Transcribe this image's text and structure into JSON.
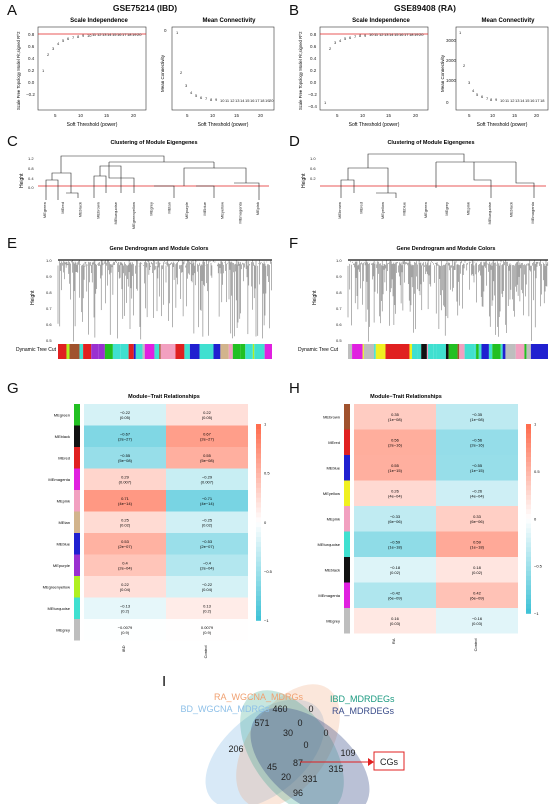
{
  "panel_letters": {
    "A": "A",
    "B": "B",
    "C": "C",
    "D": "D",
    "E": "E",
    "F": "F",
    "G": "G",
    "H": "H",
    "I": "I"
  },
  "panelA": {
    "header": "GSE75214 (IBD)",
    "left_title": "Scale Independence",
    "right_title": "Mean Connectivity",
    "ylabel_left": "Scale Free Topology Model Fit,signed R^2",
    "ylabel_right": "Mean Connectivity",
    "xlabel": "Soft Threshold (power)"
  },
  "panelB": {
    "header": "GSE89408 (RA)",
    "left_title": "Scale Independence",
    "right_title": "Mean Connectivity",
    "ylabel_left": "Scale Free Topology Model Fit,signed R^2",
    "ylabel_right": "Mean Connectivity",
    "xlabel": "Soft Threshold (power)"
  },
  "panelC": {
    "title": "Clustering of Module Eigengenes",
    "ylabel": "Height",
    "leaves": [
      "MEgreen",
      "MEred",
      "MEblack",
      "MEbrown",
      "MEturquoise",
      "MEgreenyellow",
      "MEgrey",
      "MEtan",
      "MEpurple",
      "MEblue",
      "MEyellow",
      "MEmagenta",
      "MEpink"
    ]
  },
  "panelD": {
    "title": "Clustering of Module Eigengenes",
    "ylabel": "Height",
    "leaves": [
      "MEbrown",
      "MEred",
      "MEyellow",
      "MEblue",
      "MEgreen",
      "MEgrey",
      "MEpink",
      "MEturquoise",
      "MEblack",
      "MEmagenta"
    ]
  },
  "panelE": {
    "title": "Gene Dendrogram and Module Colors",
    "ylabel": "Height",
    "track_label": "Dynamic Tree Cut"
  },
  "panelF": {
    "title": "Gene Dendrogram and Module Colors",
    "ylabel": "Height",
    "track_label": "Dynamic Tree Cut"
  },
  "panelG": {
    "title": "Module−Trait Relationships",
    "columns": [
      "IBD",
      "Control"
    ],
    "rows": [
      {
        "name": "MEgreen",
        "color": "#22c022",
        "ibd": "−0.22\n(0.05)",
        "ctl": "0.22\n(0.05)",
        "v": -0.22
      },
      {
        "name": "MEblack",
        "color": "#111111",
        "ibd": "−0.67\n(2e−27)",
        "ctl": "0.67\n(2e−27)",
        "v": -0.67
      },
      {
        "name": "MEred",
        "color": "#e02020",
        "ibd": "−0.55\n(5e−08)",
        "ctl": "0.55\n(5e−08)",
        "v": -0.55
      },
      {
        "name": "MEmagenta",
        "color": "#e020e0",
        "ibd": "0.29\n(0.007)",
        "ctl": "−0.29\n(0.007)",
        "v": 0.29
      },
      {
        "name": "MEpink",
        "color": "#f2a0c0",
        "ibd": "0.71\n(4e−14)",
        "ctl": "−0.71\n(4e−14)",
        "v": 0.71
      },
      {
        "name": "MEtan",
        "color": "#d2b48c",
        "ibd": "0.25\n(0.02)",
        "ctl": "−0.25\n(0.02)",
        "v": 0.25
      },
      {
        "name": "MEblue",
        "color": "#2020d0",
        "ibd": "0.53\n(2e−07)",
        "ctl": "−0.53\n(2e−07)",
        "v": 0.53
      },
      {
        "name": "MEpurple",
        "color": "#9a30d0",
        "ibd": "0.4\n(2e−04)",
        "ctl": "−0.4\n(2e−04)",
        "v": 0.4
      },
      {
        "name": "MEgreenyellow",
        "color": "#b0f020",
        "ibd": "0.22\n(0.04)",
        "ctl": "−0.22\n(0.04)",
        "v": 0.22
      },
      {
        "name": "MEturquoise",
        "color": "#40e0d0",
        "ibd": "−0.13\n(0.2)",
        "ctl": "0.13\n(0.2)",
        "v": -0.13
      },
      {
        "name": "MEgrey",
        "color": "#bebebe",
        "ibd": "−0.0079\n(0.9)",
        "ctl": "0.0079\n(0.9)",
        "v": -0.0079
      }
    ],
    "scale_labels": [
      "1",
      "0.5",
      "0",
      "−0.5",
      "−1"
    ]
  },
  "panelH": {
    "title": "Module−Trait Relationships",
    "columns": [
      "RA",
      "Control"
    ],
    "rows": [
      {
        "name": "MEbrown",
        "color": "#a0522d",
        "ra": "0.35\n(1e−08)",
        "ctl": "−0.35\n(1e−08)",
        "v": 0.35
      },
      {
        "name": "MEred",
        "color": "#e02020",
        "ra": "0.56\n(2e−16)",
        "ctl": "−0.56\n(2e−16)",
        "v": 0.56
      },
      {
        "name": "MEblue",
        "color": "#2020d0",
        "ra": "0.55\n(1e−15)",
        "ctl": "−0.55\n(1e−15)",
        "v": 0.55
      },
      {
        "name": "MEyellow",
        "color": "#f0f020",
        "ra": "0.26\n(4e−04)",
        "ctl": "−0.26\n(4e−04)",
        "v": 0.26
      },
      {
        "name": "MEpink",
        "color": "#f2a0c0",
        "ra": "−0.33\n(6e−06)",
        "ctl": "0.33\n(6e−06)",
        "v": -0.33
      },
      {
        "name": "MEturquoise",
        "color": "#40e0d0",
        "ra": "−0.59\n(1e−18)",
        "ctl": "0.59\n(1e−18)",
        "v": -0.59
      },
      {
        "name": "MEblack",
        "color": "#111111",
        "ra": "−0.18\n(0.02)",
        "ctl": "0.18\n(0.02)",
        "v": -0.18
      },
      {
        "name": "MEmagenta",
        "color": "#e020e0",
        "ra": "−0.42\n(6e−09)",
        "ctl": "0.42\n(6e−09)",
        "v": -0.42
      },
      {
        "name": "MEgrey",
        "color": "#bebebe",
        "ra": "0.16\n(0.03)",
        "ctl": "−0.16\n(0.03)",
        "v": 0.16
      }
    ],
    "scale_labels": [
      "1",
      "0.5",
      "0",
      "−0.5",
      "−1"
    ]
  },
  "panelI": {
    "sets": [
      {
        "name": "RA_WGCNA_MDRGs",
        "color": "#f0a070"
      },
      {
        "name": "IBD_MDRDEGs",
        "color": "#1a9a80"
      },
      {
        "name": "IBD_WGCNA_MDRGs",
        "color": "#8ec0e8"
      },
      {
        "name": "RA_MDRDEGs",
        "color": "#3a4c8a"
      }
    ],
    "counts": [
      "460",
      "0",
      "0",
      "571",
      "30",
      "0",
      "206",
      "0",
      "109",
      "87",
      "45",
      "315",
      "20",
      "331",
      "96"
    ],
    "box_label": "CGs"
  }
}
